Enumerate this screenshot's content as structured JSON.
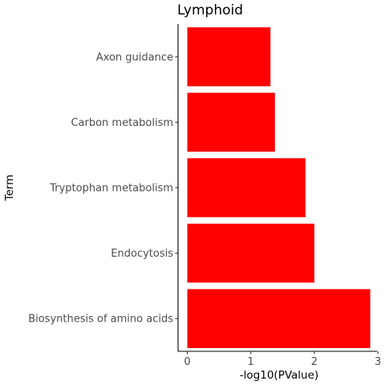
{
  "chart_data": {
    "type": "bar",
    "orientation": "horizontal",
    "title": "Lymphoid",
    "xlabel": "-log10(PValue)",
    "ylabel": "Term",
    "categories": [
      "Biosynthesis of amino acids",
      "Endocytosis",
      "Tryptophan metabolism",
      "Carbon metabolism",
      "Axon guidance"
    ],
    "values": [
      2.88,
      2.0,
      1.86,
      1.38,
      1.31
    ],
    "xlim": [
      0,
      3
    ],
    "x_ticks": [
      "0",
      "1",
      "2",
      "3"
    ],
    "bar_color": "#ff0000",
    "grid": false,
    "legend": false
  }
}
